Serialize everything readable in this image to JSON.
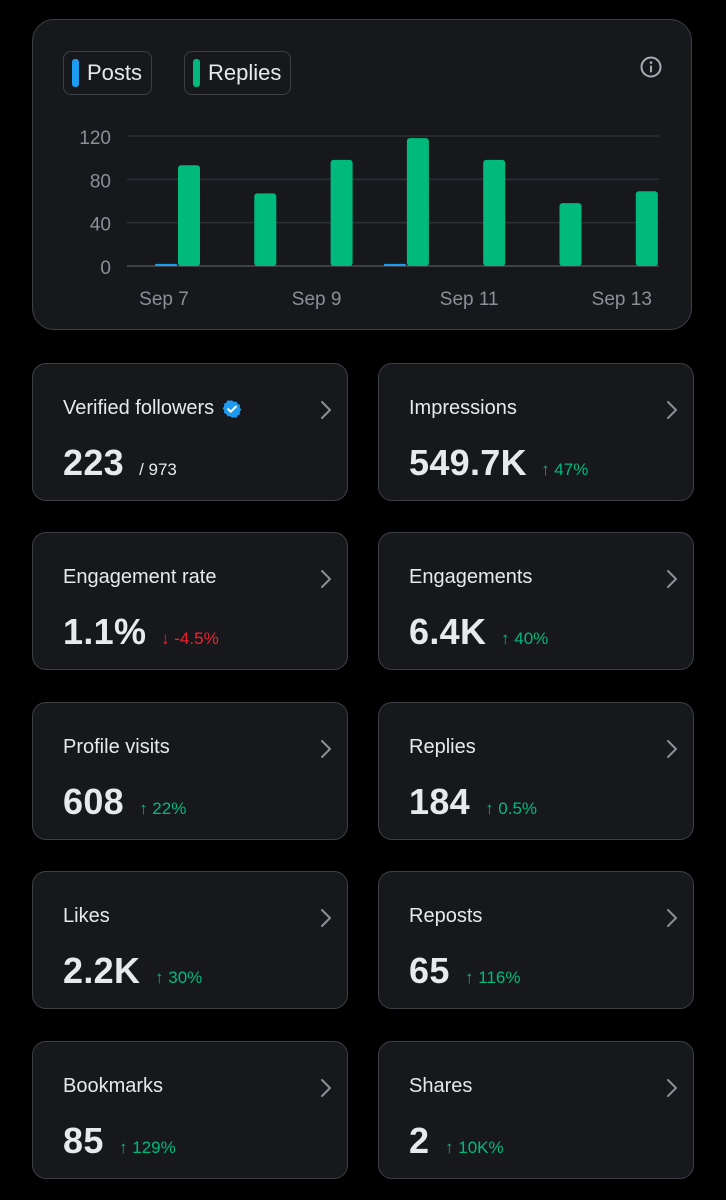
{
  "legend": [
    {
      "label": "Posts",
      "color": "#1d9bf0"
    },
    {
      "label": "Replies",
      "color": "#00ba7c"
    }
  ],
  "chart_data": {
    "type": "bar",
    "categories": [
      "Sep 7",
      "Sep 8",
      "Sep 9",
      "Sep 10",
      "Sep 11",
      "Sep 12",
      "Sep 13"
    ],
    "x_tick_labels": [
      "Sep 7",
      "Sep 9",
      "Sep 11",
      "Sep 13"
    ],
    "series": [
      {
        "name": "Posts",
        "color": "#1d9bf0",
        "values": [
          1,
          0,
          0,
          1,
          0,
          0,
          0
        ]
      },
      {
        "name": "Replies",
        "color": "#00ba7c",
        "values": [
          93,
          67,
          98,
          118,
          98,
          58,
          69
        ]
      }
    ],
    "y_ticks": [
      0,
      40,
      80,
      120
    ],
    "ylim": [
      0,
      120
    ],
    "grid": true,
    "title": "",
    "xlabel": "",
    "ylabel": ""
  },
  "stats": [
    {
      "label": "Verified followers",
      "value": "223",
      "sub": "/ 973",
      "verified": true
    },
    {
      "label": "Impressions",
      "value": "549.7K",
      "change": "↑ 47%",
      "direction": "up"
    },
    {
      "label": "Engagement rate",
      "value": "1.1%",
      "change": "↓ -4.5%",
      "direction": "down"
    },
    {
      "label": "Engagements",
      "value": "6.4K",
      "change": "↑ 40%",
      "direction": "up"
    },
    {
      "label": "Profile visits",
      "value": "608",
      "change": "↑ 22%",
      "direction": "up"
    },
    {
      "label": "Replies",
      "value": "184",
      "change": "↑ 0.5%",
      "direction": "up"
    },
    {
      "label": "Likes",
      "value": "2.2K",
      "change": "↑ 30%",
      "direction": "up"
    },
    {
      "label": "Reposts",
      "value": "65",
      "change": "↑ 116%",
      "direction": "up"
    },
    {
      "label": "Bookmarks",
      "value": "85",
      "change": "↑ 129%",
      "direction": "up"
    },
    {
      "label": "Shares",
      "value": "2",
      "change": "↑ 10K%",
      "direction": "up"
    }
  ],
  "colors": {
    "accent_blue": "#1d9bf0",
    "accent_green": "#00ba7c",
    "down_red": "#f4212e"
  },
  "icons": {
    "info": "info-icon",
    "chevron": "chevron-right-icon",
    "verified": "verified-badge-icon"
  }
}
